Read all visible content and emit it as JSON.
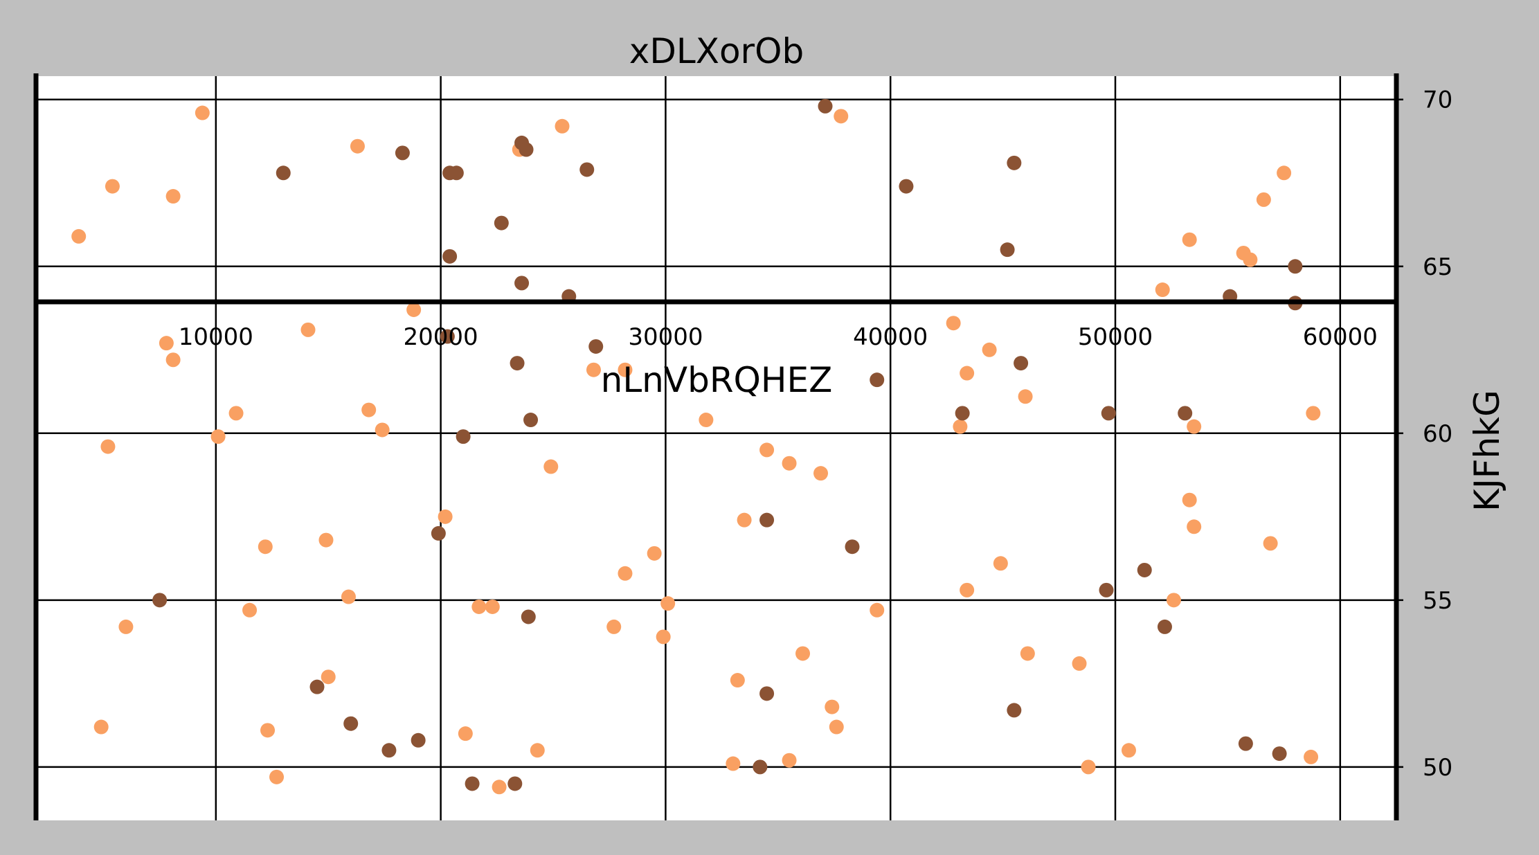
{
  "chart_data": {
    "type": "scatter",
    "title": "xDLXorOb",
    "xlabel": "nLnVbRQHEZ",
    "ylabel": "KJFhkG",
    "x_ticks": [
      "10000",
      "20000",
      "30000",
      "40000",
      "50000",
      "60000"
    ],
    "y_ticks": [
      "50",
      "55",
      "60",
      "65",
      "70"
    ],
    "xlim": [
      2000,
      62500
    ],
    "ylim": [
      48400,
      70700
    ],
    "ylim_note_units": "y axis values",
    "grid": true,
    "legend": "none",
    "series": [
      {
        "color": "#f9a062",
        "points": [
          [
            9400,
            69.6
          ],
          [
            16300,
            68.6
          ],
          [
            25400,
            69.2
          ],
          [
            23500,
            68.5
          ],
          [
            37800,
            69.5
          ],
          [
            5400,
            67.4
          ],
          [
            8100,
            67.1
          ],
          [
            3900,
            65.9
          ],
          [
            57500,
            67.8
          ],
          [
            56600,
            67.0
          ],
          [
            53300,
            65.8
          ],
          [
            55700,
            65.4
          ],
          [
            56000,
            65.2
          ],
          [
            52100,
            64.3
          ],
          [
            18800,
            63.7
          ],
          [
            14100,
            63.1
          ],
          [
            7800,
            62.7
          ],
          [
            8100,
            62.2
          ],
          [
            42800,
            63.3
          ],
          [
            44400,
            62.5
          ],
          [
            26800,
            61.9
          ],
          [
            28200,
            61.9
          ],
          [
            43400,
            61.8
          ],
          [
            46000,
            61.1
          ],
          [
            10900,
            60.6
          ],
          [
            16800,
            60.7
          ],
          [
            17400,
            60.1
          ],
          [
            10100,
            59.9
          ],
          [
            31800,
            60.4
          ],
          [
            43100,
            60.2
          ],
          [
            53500,
            60.2
          ],
          [
            58800,
            60.6
          ],
          [
            5200,
            59.6
          ],
          [
            24900,
            59.0
          ],
          [
            34500,
            59.5
          ],
          [
            35500,
            59.1
          ],
          [
            36900,
            58.8
          ],
          [
            53300,
            58.0
          ],
          [
            20200,
            57.5
          ],
          [
            33500,
            57.4
          ],
          [
            53500,
            57.2
          ],
          [
            12200,
            56.6
          ],
          [
            14900,
            56.8
          ],
          [
            29500,
            56.4
          ],
          [
            56900,
            56.7
          ],
          [
            28200,
            55.8
          ],
          [
            44900,
            56.1
          ],
          [
            43400,
            55.3
          ],
          [
            15900,
            55.1
          ],
          [
            52600,
            55.0
          ],
          [
            11500,
            54.7
          ],
          [
            21700,
            54.8
          ],
          [
            22300,
            54.8
          ],
          [
            30100,
            54.9
          ],
          [
            39400,
            54.7
          ],
          [
            6000,
            54.2
          ],
          [
            27700,
            54.2
          ],
          [
            29900,
            53.9
          ],
          [
            36100,
            53.4
          ],
          [
            46100,
            53.4
          ],
          [
            48400,
            53.1
          ],
          [
            15000,
            52.7
          ],
          [
            33200,
            52.6
          ],
          [
            37400,
            51.8
          ],
          [
            4900,
            51.2
          ],
          [
            12300,
            51.1
          ],
          [
            21100,
            51.0
          ],
          [
            37600,
            51.2
          ],
          [
            24300,
            50.5
          ],
          [
            50600,
            50.5
          ],
          [
            58700,
            50.3
          ],
          [
            33000,
            50.1
          ],
          [
            35500,
            50.2
          ],
          [
            48800,
            50.0
          ],
          [
            12700,
            49.7
          ],
          [
            22600,
            49.4
          ]
        ]
      },
      {
        "color": "#8b5334",
        "points": [
          [
            37100,
            69.8
          ],
          [
            23600,
            68.7
          ],
          [
            23800,
            68.5
          ],
          [
            18300,
            68.4
          ],
          [
            13000,
            67.8
          ],
          [
            20400,
            67.8
          ],
          [
            20700,
            67.8
          ],
          [
            26500,
            67.9
          ],
          [
            40700,
            67.4
          ],
          [
            45500,
            68.1
          ],
          [
            22700,
            66.3
          ],
          [
            20400,
            65.3
          ],
          [
            45200,
            65.5
          ],
          [
            58000,
            65.0
          ],
          [
            23600,
            64.5
          ],
          [
            25700,
            64.1
          ],
          [
            55100,
            64.1
          ],
          [
            58000,
            63.9
          ],
          [
            20300,
            62.9
          ],
          [
            26900,
            62.6
          ],
          [
            23400,
            62.1
          ],
          [
            45800,
            62.1
          ],
          [
            39400,
            61.6
          ],
          [
            43200,
            60.6
          ],
          [
            49700,
            60.6
          ],
          [
            53100,
            60.6
          ],
          [
            24000,
            60.4
          ],
          [
            21000,
            59.9
          ],
          [
            34500,
            57.4
          ],
          [
            19900,
            57.0
          ],
          [
            38300,
            56.6
          ],
          [
            51300,
            55.9
          ],
          [
            7500,
            55.0
          ],
          [
            49600,
            55.3
          ],
          [
            23900,
            54.5
          ],
          [
            52200,
            54.2
          ],
          [
            14500,
            52.4
          ],
          [
            34500,
            52.2
          ],
          [
            45500,
            51.7
          ],
          [
            16000,
            51.3
          ],
          [
            19000,
            50.8
          ],
          [
            17700,
            50.5
          ],
          [
            55800,
            50.7
          ],
          [
            57300,
            50.4
          ],
          [
            34200,
            50.0
          ],
          [
            21400,
            49.5
          ],
          [
            23300,
            49.5
          ]
        ]
      }
    ]
  }
}
